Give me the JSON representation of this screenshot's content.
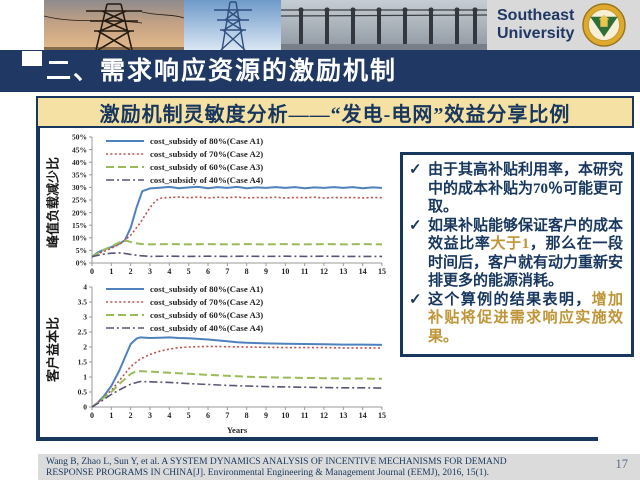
{
  "header": {
    "university_line1": "Southeast",
    "university_line2": "University"
  },
  "title_bar": {
    "text": "二、需求响应资源的激励机制"
  },
  "subtitle_bar": {
    "text": "激励机制灵敏度分析——“发电-电网”效益分享比例"
  },
  "callout": {
    "highlight_color": "#BF9537",
    "bullets": [
      {
        "segments": [
          {
            "text": "由于其高补贴利用率，本研究中的成本补贴为70％可能更可取。",
            "highlight": false
          }
        ]
      },
      {
        "segments": [
          {
            "text": "如果补贴能够保证客户的成本效益比率",
            "highlight": false
          },
          {
            "text": "大于1",
            "highlight": true
          },
          {
            "text": "，那么在一段时间后，客户就有动力重新安排更多的能源消耗。",
            "highlight": false
          }
        ]
      },
      {
        "segments": [
          {
            "text": "这个算例的结果表明，",
            "highlight": false
          },
          {
            "text": "增加补贴将促进需求响应实施效果。",
            "highlight": true
          }
        ]
      }
    ]
  },
  "citation": {
    "line1": "Wang B, Zhao L, Sun Y, et al. A SYSTEM DYNAMICS ANALYSIS OF INCENTIVE MECHANISMS FOR DEMAND",
    "line2": "RESPONSE PROGRAMS IN CHINA[J]. Environmental Engineering & Management Journal (EEMJ), 2016, 15(1)."
  },
  "slide": {
    "page_number": "17"
  },
  "chart_data": [
    {
      "type": "line",
      "title": "",
      "ylabel": "峰值负载减少比",
      "xlabel": "",
      "xlim": [
        0,
        15
      ],
      "ylim": [
        0,
        50
      ],
      "xticks": [
        0,
        1,
        2,
        3,
        4,
        5,
        6,
        7,
        8,
        9,
        10,
        11,
        12,
        13,
        14,
        15
      ],
      "yticks": [
        0,
        5,
        10,
        15,
        20,
        25,
        30,
        35,
        40,
        45,
        50
      ],
      "ytick_suffix": "%",
      "grid": false,
      "legend_position": "top-left",
      "series": [
        {
          "name": "cost_subsidy of 80%(Case A1)",
          "color": "#4F81BD",
          "style": "solid",
          "width": 2,
          "points": [
            [
              0,
              2.5
            ],
            [
              0.3,
              4.2
            ],
            [
              0.6,
              5.2
            ],
            [
              1,
              6.3
            ],
            [
              1.4,
              7.6
            ],
            [
              1.7,
              9
            ],
            [
              2,
              14
            ],
            [
              2.3,
              22
            ],
            [
              2.6,
              28.5
            ],
            [
              3,
              29.6
            ],
            [
              3.5,
              29.9
            ],
            [
              4,
              30.2
            ],
            [
              4.5,
              29.7
            ],
            [
              5,
              30
            ],
            [
              5.5,
              30.2
            ],
            [
              6,
              29.7
            ],
            [
              6.5,
              30.1
            ],
            [
              7,
              29.8
            ],
            [
              7.5,
              30.2
            ],
            [
              8,
              29.7
            ],
            [
              8.5,
              30
            ],
            [
              9,
              29.8
            ],
            [
              9.5,
              30.1
            ],
            [
              10,
              29.8
            ],
            [
              10.5,
              30.1
            ],
            [
              11,
              29.7
            ],
            [
              11.5,
              30
            ],
            [
              12,
              29.8
            ],
            [
              12.5,
              30.1
            ],
            [
              13,
              29.8
            ],
            [
              13.5,
              30.1
            ],
            [
              14,
              29.7
            ],
            [
              14.5,
              30
            ],
            [
              15,
              29.8
            ]
          ]
        },
        {
          "name": "cost_subsidy of 70%(Case A2)",
          "color": "#C0504D",
          "style": "dotted",
          "width": 1.6,
          "points": [
            [
              0,
              2.5
            ],
            [
              0.5,
              4.3
            ],
            [
              1,
              5.8
            ],
            [
              1.5,
              7.8
            ],
            [
              2,
              11
            ],
            [
              2.5,
              16
            ],
            [
              3,
              22
            ],
            [
              3.3,
              24.8
            ],
            [
              3.6,
              25.8
            ],
            [
              4,
              26
            ],
            [
              4.5,
              26.2
            ],
            [
              5,
              25.9
            ],
            [
              5.5,
              26.2
            ],
            [
              6,
              25.8
            ],
            [
              6.5,
              26.1
            ],
            [
              7,
              25.9
            ],
            [
              7.5,
              26.2
            ],
            [
              8,
              25.8
            ],
            [
              8.5,
              26
            ],
            [
              9,
              25.9
            ],
            [
              9.5,
              26.1
            ],
            [
              10,
              25.8
            ],
            [
              10.5,
              26
            ],
            [
              11,
              25.9
            ],
            [
              11.5,
              26.1
            ],
            [
              12,
              25.8
            ],
            [
              12.5,
              26
            ],
            [
              13,
              25.9
            ],
            [
              13.5,
              26
            ],
            [
              14,
              25.8
            ],
            [
              14.5,
              26
            ],
            [
              15,
              25.9
            ]
          ]
        },
        {
          "name": "cost_subsidy of 60%(Case A3)",
          "color": "#9BBB59",
          "style": "dashed",
          "width": 2,
          "points": [
            [
              0,
              2.5
            ],
            [
              0.5,
              4.8
            ],
            [
              1,
              6.6
            ],
            [
              1.5,
              8.5
            ],
            [
              1.8,
              8.8
            ],
            [
              2.2,
              7.9
            ],
            [
              2.6,
              7.5
            ],
            [
              3,
              7.4
            ],
            [
              4,
              7.5
            ],
            [
              5,
              7.4
            ],
            [
              6,
              7.5
            ],
            [
              7,
              7.4
            ],
            [
              8,
              7.5
            ],
            [
              9,
              7.4
            ],
            [
              10,
              7.5
            ],
            [
              11,
              7.4
            ],
            [
              12,
              7.5
            ],
            [
              13,
              7.4
            ],
            [
              14,
              7.5
            ],
            [
              15,
              7.4
            ]
          ]
        },
        {
          "name": "cost_subsidy of 40%(Case A4)",
          "color": "#5C5378",
          "style": "dashdot",
          "width": 1.6,
          "points": [
            [
              0,
              2.5
            ],
            [
              0.5,
              3.4
            ],
            [
              1,
              3.9
            ],
            [
              1.5,
              4
            ],
            [
              2,
              3.4
            ],
            [
              2.5,
              2.9
            ],
            [
              3,
              2.6
            ],
            [
              4,
              2.7
            ],
            [
              5,
              2.6
            ],
            [
              6,
              2.7
            ],
            [
              7,
              2.6
            ],
            [
              8,
              2.7
            ],
            [
              9,
              2.6
            ],
            [
              10,
              2.7
            ],
            [
              11,
              2.6
            ],
            [
              12,
              2.7
            ],
            [
              13,
              2.6
            ],
            [
              14,
              2.6
            ],
            [
              15,
              2.6
            ]
          ]
        }
      ]
    },
    {
      "type": "line",
      "title": "",
      "ylabel": "客户益本比",
      "xlabel": "Years",
      "xlim": [
        0,
        15
      ],
      "ylim": [
        0,
        4
      ],
      "xticks": [
        0,
        1,
        2,
        3,
        4,
        5,
        6,
        7,
        8,
        9,
        10,
        11,
        12,
        13,
        14,
        15
      ],
      "yticks": [
        0,
        0.5,
        1,
        1.5,
        2,
        2.5,
        3,
        3.5,
        4
      ],
      "ytick_suffix": "",
      "grid": false,
      "legend_position": "top-left",
      "series": [
        {
          "name": "cost_subsidy of 80%(Case A1)",
          "color": "#4F81BD",
          "style": "solid",
          "width": 2,
          "points": [
            [
              0,
              0
            ],
            [
              0.3,
              0.15
            ],
            [
              0.6,
              0.35
            ],
            [
              1,
              0.7
            ],
            [
              1.4,
              1.2
            ],
            [
              1.8,
              1.8
            ],
            [
              2,
              2.1
            ],
            [
              2.3,
              2.28
            ],
            [
              2.5,
              2.32
            ],
            [
              3,
              2.3
            ],
            [
              3.5,
              2.31
            ],
            [
              4,
              2.32
            ],
            [
              4.5,
              2.3
            ],
            [
              5,
              2.29
            ],
            [
              5.5,
              2.27
            ],
            [
              6,
              2.25
            ],
            [
              6.5,
              2.22
            ],
            [
              7,
              2.19
            ],
            [
              7.5,
              2.16
            ],
            [
              8,
              2.14
            ],
            [
              9,
              2.12
            ],
            [
              10,
              2.11
            ],
            [
              11,
              2.1
            ],
            [
              12,
              2.09
            ],
            [
              13,
              2.08
            ],
            [
              14,
              2.08
            ],
            [
              15,
              2.07
            ]
          ]
        },
        {
          "name": "cost_subsidy of 70%(Case A2)",
          "color": "#C0504D",
          "style": "dotted",
          "width": 1.6,
          "points": [
            [
              0,
              0
            ],
            [
              0.5,
              0.25
            ],
            [
              1,
              0.55
            ],
            [
              1.5,
              0.95
            ],
            [
              2,
              1.35
            ],
            [
              2.5,
              1.6
            ],
            [
              3,
              1.75
            ],
            [
              3.5,
              1.86
            ],
            [
              4,
              1.93
            ],
            [
              4.5,
              1.98
            ],
            [
              5,
              2
            ],
            [
              6,
              2.02
            ],
            [
              7,
              2.01
            ],
            [
              8,
              2
            ],
            [
              9,
              1.99
            ],
            [
              10,
              1.98
            ],
            [
              11,
              1.98
            ],
            [
              12,
              1.98
            ],
            [
              13,
              1.97
            ],
            [
              14,
              1.97
            ],
            [
              15,
              1.97
            ]
          ]
        },
        {
          "name": "cost_subsidy of 60%(Case A3)",
          "color": "#9BBB59",
          "style": "dashed",
          "width": 2,
          "points": [
            [
              0,
              0
            ],
            [
              0.5,
              0.25
            ],
            [
              1,
              0.5
            ],
            [
              1.5,
              0.82
            ],
            [
              2,
              1.1
            ],
            [
              2.3,
              1.2
            ],
            [
              3,
              1.18
            ],
            [
              4,
              1.14
            ],
            [
              5,
              1.11
            ],
            [
              6,
              1.07
            ],
            [
              7,
              1.04
            ],
            [
              8,
              1.01
            ],
            [
              9,
              0.99
            ],
            [
              10,
              0.98
            ],
            [
              11,
              0.97
            ],
            [
              12,
              0.96
            ],
            [
              13,
              0.95
            ],
            [
              14,
              0.95
            ],
            [
              15,
              0.94
            ]
          ]
        },
        {
          "name": "cost_subsidy of 40%(Case A4)",
          "color": "#5C5378",
          "style": "dashdot",
          "width": 1.6,
          "points": [
            [
              0,
              0
            ],
            [
              0.5,
              0.2
            ],
            [
              1,
              0.42
            ],
            [
              1.5,
              0.6
            ],
            [
              2,
              0.76
            ],
            [
              2.5,
              0.85
            ],
            [
              3,
              0.84
            ],
            [
              4,
              0.82
            ],
            [
              5,
              0.78
            ],
            [
              6,
              0.75
            ],
            [
              7,
              0.72
            ],
            [
              8,
              0.7
            ],
            [
              9,
              0.68
            ],
            [
              10,
              0.67
            ],
            [
              11,
              0.66
            ],
            [
              12,
              0.65
            ],
            [
              13,
              0.64
            ],
            [
              14,
              0.64
            ],
            [
              15,
              0.63
            ]
          ]
        }
      ]
    }
  ]
}
